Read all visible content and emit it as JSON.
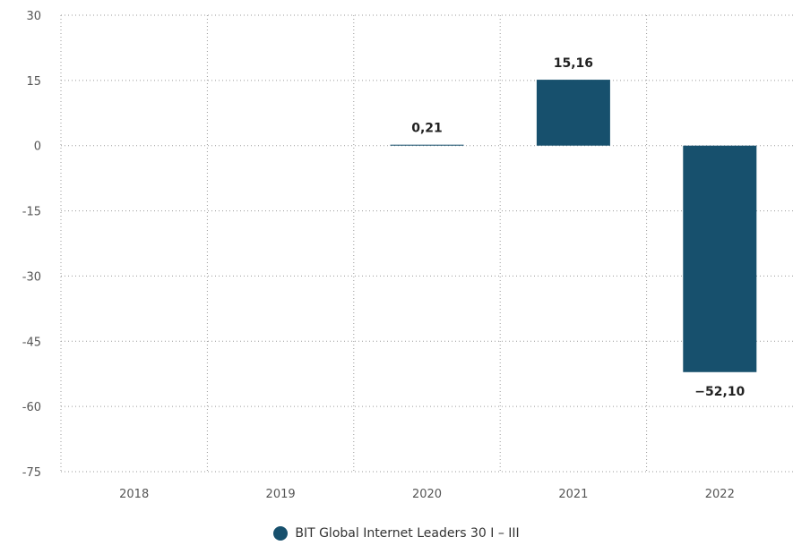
{
  "chart_data": {
    "type": "bar",
    "categories": [
      "2018",
      "2019",
      "2020",
      "2021",
      "2022"
    ],
    "series": [
      {
        "name": "BIT Global Internet Leaders 30 I – III",
        "values": [
          null,
          null,
          0.21,
          15.16,
          -52.1
        ],
        "labels": [
          "",
          "",
          "0,21",
          "15,16",
          "−52,10"
        ],
        "color": "#17506d"
      }
    ],
    "yticks": [
      30,
      15,
      0,
      -15,
      -30,
      -45,
      -60,
      -75
    ],
    "ylim": [
      -75,
      30
    ],
    "grid": true,
    "legend_position": "bottom-center"
  }
}
